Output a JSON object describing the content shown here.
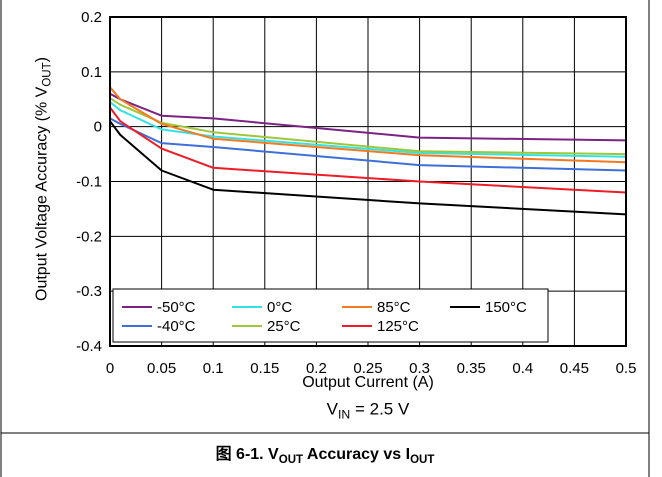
{
  "chart_data": {
    "type": "line",
    "xlabel": "Output Current (A)",
    "ylabel": {
      "prefix": "Output Voltage Accuracy (% V",
      "sub": "OUT",
      "suffix": ")"
    },
    "xlim": [
      0,
      0.5
    ],
    "ylim": [
      -0.4,
      0.2
    ],
    "x_ticks": [
      "0",
      "0.05",
      "0.1",
      "0.15",
      "0.2",
      "0.25",
      "0.3",
      "0.35",
      "0.4",
      "0.45",
      "0.5"
    ],
    "y_ticks": [
      "0.2",
      "0.1",
      "0",
      "-0.1",
      "-0.2",
      "-0.3",
      "-0.4"
    ],
    "grid": true,
    "legend": {
      "placement": "bottom-left"
    },
    "x": [
      0,
      0.01,
      0.05,
      0.1,
      0.3,
      0.5
    ],
    "series": [
      {
        "name": "-50°C",
        "color": "#7B2383",
        "values": [
          0.06,
          0.05,
          0.02,
          0.015,
          -0.02,
          -0.025
        ]
      },
      {
        "name": "-40°C",
        "color": "#3E6FD9",
        "values": [
          0.015,
          0.005,
          -0.03,
          -0.037,
          -0.07,
          -0.08
        ]
      },
      {
        "name": "0°C",
        "color": "#33E3E3",
        "values": [
          0.045,
          0.03,
          -0.005,
          -0.018,
          -0.048,
          -0.055
        ]
      },
      {
        "name": "25°C",
        "color": "#9DC73B",
        "values": [
          0.052,
          0.04,
          0.007,
          -0.01,
          -0.045,
          -0.05
        ]
      },
      {
        "name": "85°C",
        "color": "#F47920",
        "values": [
          0.072,
          0.05,
          0.005,
          -0.022,
          -0.052,
          -0.065
        ]
      },
      {
        "name": "125°C",
        "color": "#EE1C25",
        "values": [
          0.035,
          0.01,
          -0.04,
          -0.075,
          -0.1,
          -0.12
        ]
      },
      {
        "name": "150°C",
        "color": "#000000",
        "values": [
          0.01,
          -0.015,
          -0.08,
          -0.115,
          -0.14,
          -0.16
        ]
      }
    ]
  },
  "annotation": {
    "prefix": "V",
    "sub": "IN",
    "suffix": " = 2.5 V"
  },
  "caption": {
    "prefix": "图 6-1. V",
    "sub1": "OUT",
    "mid": " Accuracy vs I",
    "sub2": "OUT"
  }
}
